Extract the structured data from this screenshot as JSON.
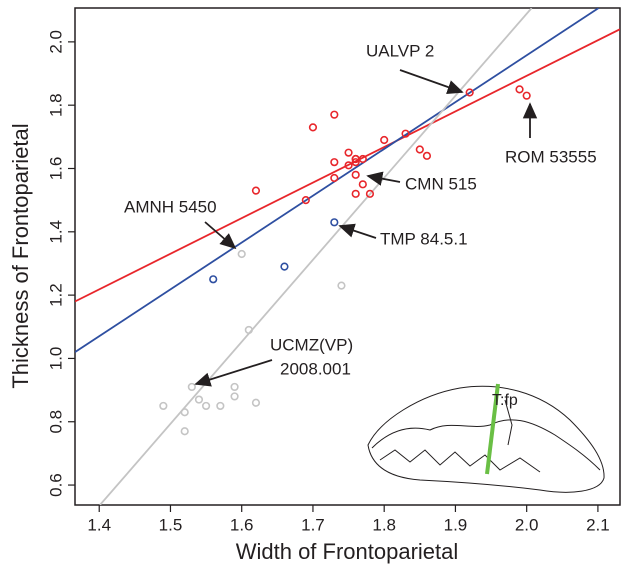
{
  "chart_data": {
    "type": "scatter",
    "xlabel": "Width of Frontoparietal",
    "ylabel": "Thickness of Frontoparietal",
    "xlim": [
      1.366,
      2.131
    ],
    "ylim": [
      0.537,
      2.107
    ],
    "xticks": [
      1.4,
      1.5,
      1.6,
      1.7,
      1.8,
      1.9,
      {
        "value": 2,
        "label": "2.0"
      },
      2.1
    ],
    "yticks": [
      0.6,
      0.8,
      {
        "value": 1,
        "label": "1.0"
      },
      1.2,
      1.4,
      1.6,
      1.8,
      {
        "value": 2,
        "label": "2.0"
      }
    ],
    "series": [
      {
        "color": "#e8262b",
        "x": [
          1.62,
          1.69,
          1.7,
          1.73,
          1.73,
          1.73,
          1.75,
          1.75,
          1.76,
          1.76,
          1.76,
          1.76,
          1.77,
          1.77,
          1.76,
          1.78,
          1.8,
          1.83,
          1.85,
          1.86,
          1.92,
          1.99,
          2.0
        ],
        "y": [
          1.53,
          1.5,
          1.73,
          1.77,
          1.62,
          1.57,
          1.65,
          1.61,
          1.63,
          1.62,
          1.63,
          1.58,
          1.63,
          1.55,
          1.52,
          1.52,
          1.69,
          1.71,
          1.66,
          1.64,
          1.84,
          1.85,
          1.83
        ]
      },
      {
        "color": "#2e4fa1",
        "x": [
          1.56,
          1.66,
          1.73
        ],
        "y": [
          1.25,
          1.29,
          1.43
        ]
      },
      {
        "color": "#c4c4c4",
        "x": [
          1.6,
          1.61,
          1.74,
          1.53,
          1.49,
          1.52,
          1.52,
          1.54,
          1.55,
          1.57,
          1.59,
          1.59,
          1.62
        ],
        "y": [
          1.33,
          1.09,
          1.23,
          0.91,
          0.85,
          0.83,
          0.77,
          0.87,
          0.85,
          0.85,
          0.88,
          0.91,
          0.86
        ]
      }
    ],
    "fit_lines": [
      {
        "color": "#e8262b",
        "x": [
          1.366,
          2.131
        ],
        "y": [
          1.18,
          2.04
        ]
      },
      {
        "color": "#2e4fa1",
        "x": [
          1.366,
          2.101
        ],
        "y": [
          1.02,
          2.107
        ]
      },
      {
        "color": "#c4c4c4",
        "x": [
          1.401,
          2.007
        ],
        "y": [
          0.537,
          2.107
        ]
      }
    ],
    "annotations": [
      "UALVP 2",
      "ROM 53555",
      "CMN 515",
      "AMNH 5450",
      "TMP 84.5.1",
      "UCMZ(VP)",
      "2008.001"
    ],
    "inset_label": "T:fp"
  }
}
